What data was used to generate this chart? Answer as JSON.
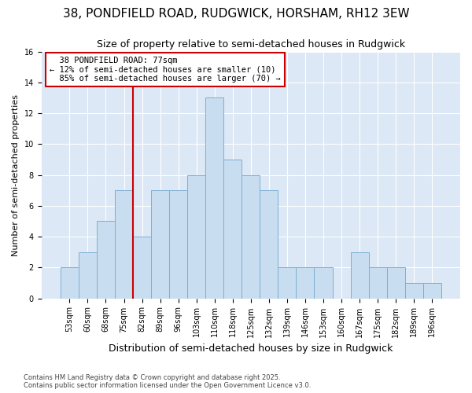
{
  "title": "38, PONDFIELD ROAD, RUDGWICK, HORSHAM, RH12 3EW",
  "subtitle": "Size of property relative to semi-detached houses in Rudgwick",
  "xlabel": "Distribution of semi-detached houses by size in Rudgwick",
  "ylabel": "Number of semi-detached properties",
  "categories": [
    "53sqm",
    "60sqm",
    "68sqm",
    "75sqm",
    "82sqm",
    "89sqm",
    "96sqm",
    "103sqm",
    "110sqm",
    "118sqm",
    "125sqm",
    "132sqm",
    "139sqm",
    "146sqm",
    "153sqm",
    "160sqm",
    "167sqm",
    "175sqm",
    "182sqm",
    "189sqm",
    "196sqm"
  ],
  "values": [
    2,
    3,
    5,
    7,
    4,
    7,
    7,
    8,
    13,
    9,
    8,
    7,
    2,
    2,
    2,
    0,
    3,
    2,
    2,
    1,
    1
  ],
  "bar_color": "#c9ddf0",
  "bar_edge_color": "#7bafd4",
  "marker_line_color": "#cc0000",
  "annotation_box_bg": "#ffffff",
  "annotation_box_edge": "#cc0000",
  "marker_label": "38 PONDFIELD ROAD: 77sqm",
  "marker_smaller_pct": "12%",
  "marker_smaller_n": 10,
  "marker_larger_pct": "85%",
  "marker_larger_n": 70,
  "ylim": [
    0,
    16
  ],
  "yticks": [
    0,
    2,
    4,
    6,
    8,
    10,
    12,
    14,
    16
  ],
  "axes_bg_color": "#dce8f5",
  "fig_bg_color": "#ffffff",
  "grid_color": "#ffffff",
  "footer1": "Contains HM Land Registry data © Crown copyright and database right 2025.",
  "footer2": "Contains public sector information licensed under the Open Government Licence v3.0.",
  "title_fontsize": 11,
  "subtitle_fontsize": 9,
  "ylabel_fontsize": 8,
  "xlabel_fontsize": 9,
  "tick_fontsize": 7,
  "footer_fontsize": 6,
  "annotation_fontsize": 7.5
}
